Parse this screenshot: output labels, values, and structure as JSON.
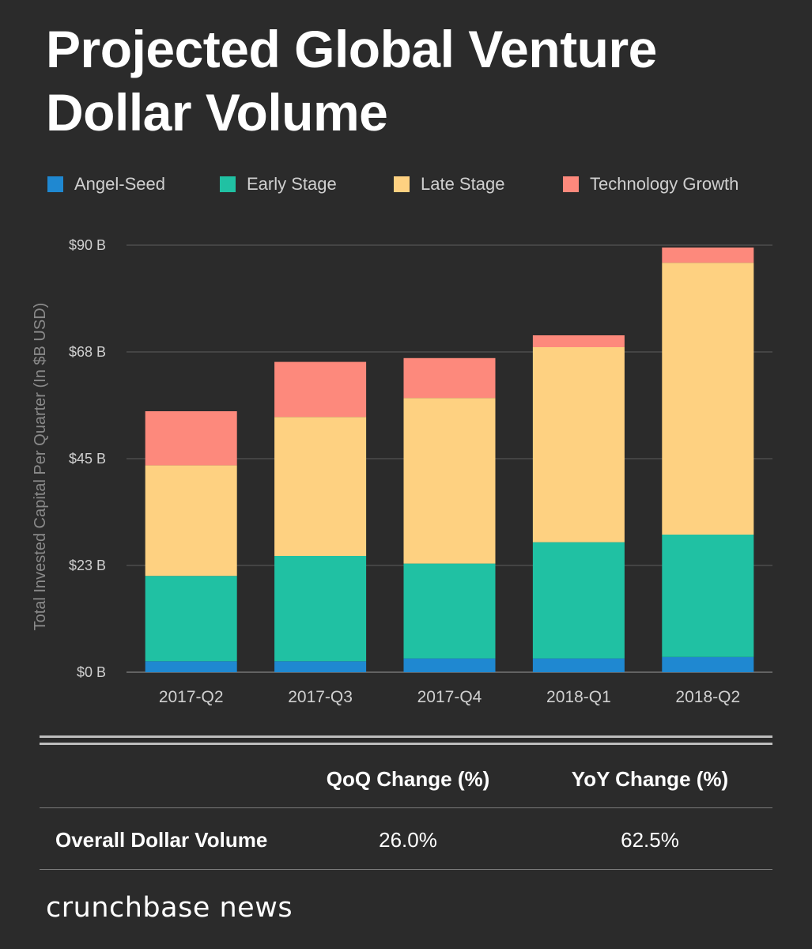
{
  "title": "Projected Global Venture Dollar Volume",
  "legend": [
    {
      "label": "Angel-Seed",
      "color": "#1f88d1"
    },
    {
      "label": "Early Stage",
      "color": "#20c1a3"
    },
    {
      "label": "Late Stage",
      "color": "#fed181"
    },
    {
      "label": "Technology Growth",
      "color": "#fd897c"
    }
  ],
  "chart_data": {
    "type": "bar",
    "stacked": true,
    "categories": [
      "2017-Q2",
      "2017-Q3",
      "2017-Q4",
      "2018-Q1",
      "2018-Q2"
    ],
    "series": [
      {
        "name": "Angel-Seed",
        "values": [
          2.3,
          2.3,
          2.9,
          2.9,
          3.2
        ]
      },
      {
        "name": "Early Stage",
        "values": [
          18.0,
          22.2,
          20.0,
          24.5,
          25.8
        ]
      },
      {
        "name": "Late Stage",
        "values": [
          23.3,
          29.3,
          34.9,
          41.1,
          57.3
        ]
      },
      {
        "name": "Technology Growth",
        "values": [
          11.4,
          11.6,
          8.4,
          2.5,
          3.2
        ]
      }
    ],
    "yticks": [
      "$0 B",
      "$23 B",
      "$45 B",
      "$68 B",
      "$90 B"
    ],
    "ylabel": "Total Invested Capital Per Quarter (In $B USD)",
    "ylim": [
      0,
      90
    ],
    "grid": true,
    "legend_position": "top"
  },
  "table": {
    "headers": [
      "",
      "QoQ Change (%)",
      "YoY Change (%)"
    ],
    "rows": [
      {
        "label": "Overall Dollar Volume",
        "qoq": "26.0%",
        "yoy": "62.5%"
      }
    ]
  },
  "brand": "crunchbase news"
}
